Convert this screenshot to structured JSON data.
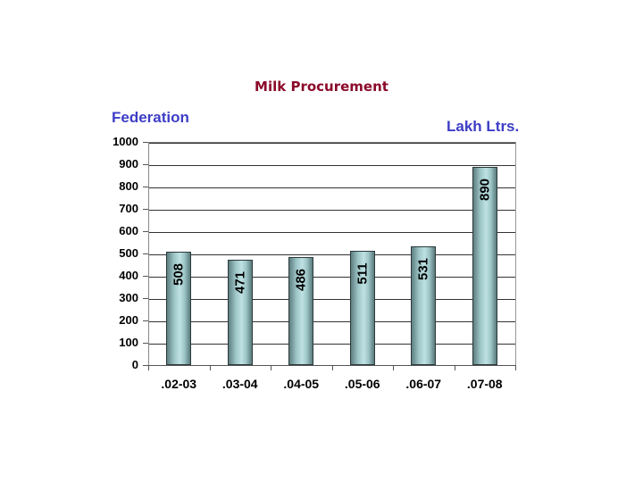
{
  "chart_data": {
    "type": "bar",
    "title": "Milk Procurement",
    "subtitle": "Federation",
    "unit_label": "Lakh Ltrs.",
    "xlabel": "",
    "ylabel": "Lakh Ltrs.",
    "categories": [
      ".02-03",
      ".03-04",
      ".04-05",
      ".05-06",
      ".06-07",
      ".07-08"
    ],
    "values": [
      508,
      471,
      486,
      511,
      531,
      890
    ],
    "data_labels": [
      "508",
      "471",
      "486",
      "511",
      "531",
      "890"
    ],
    "ylim": [
      0,
      1000
    ],
    "yticks": [
      "1000",
      "900",
      "800",
      "700",
      "600",
      "500",
      "400",
      "300",
      "200",
      "100",
      "0"
    ],
    "grid": true,
    "legend": null,
    "colors": {
      "bar": "#9cc4c6",
      "title": "#8b0a2a",
      "labels": "#3d3dc6"
    }
  }
}
